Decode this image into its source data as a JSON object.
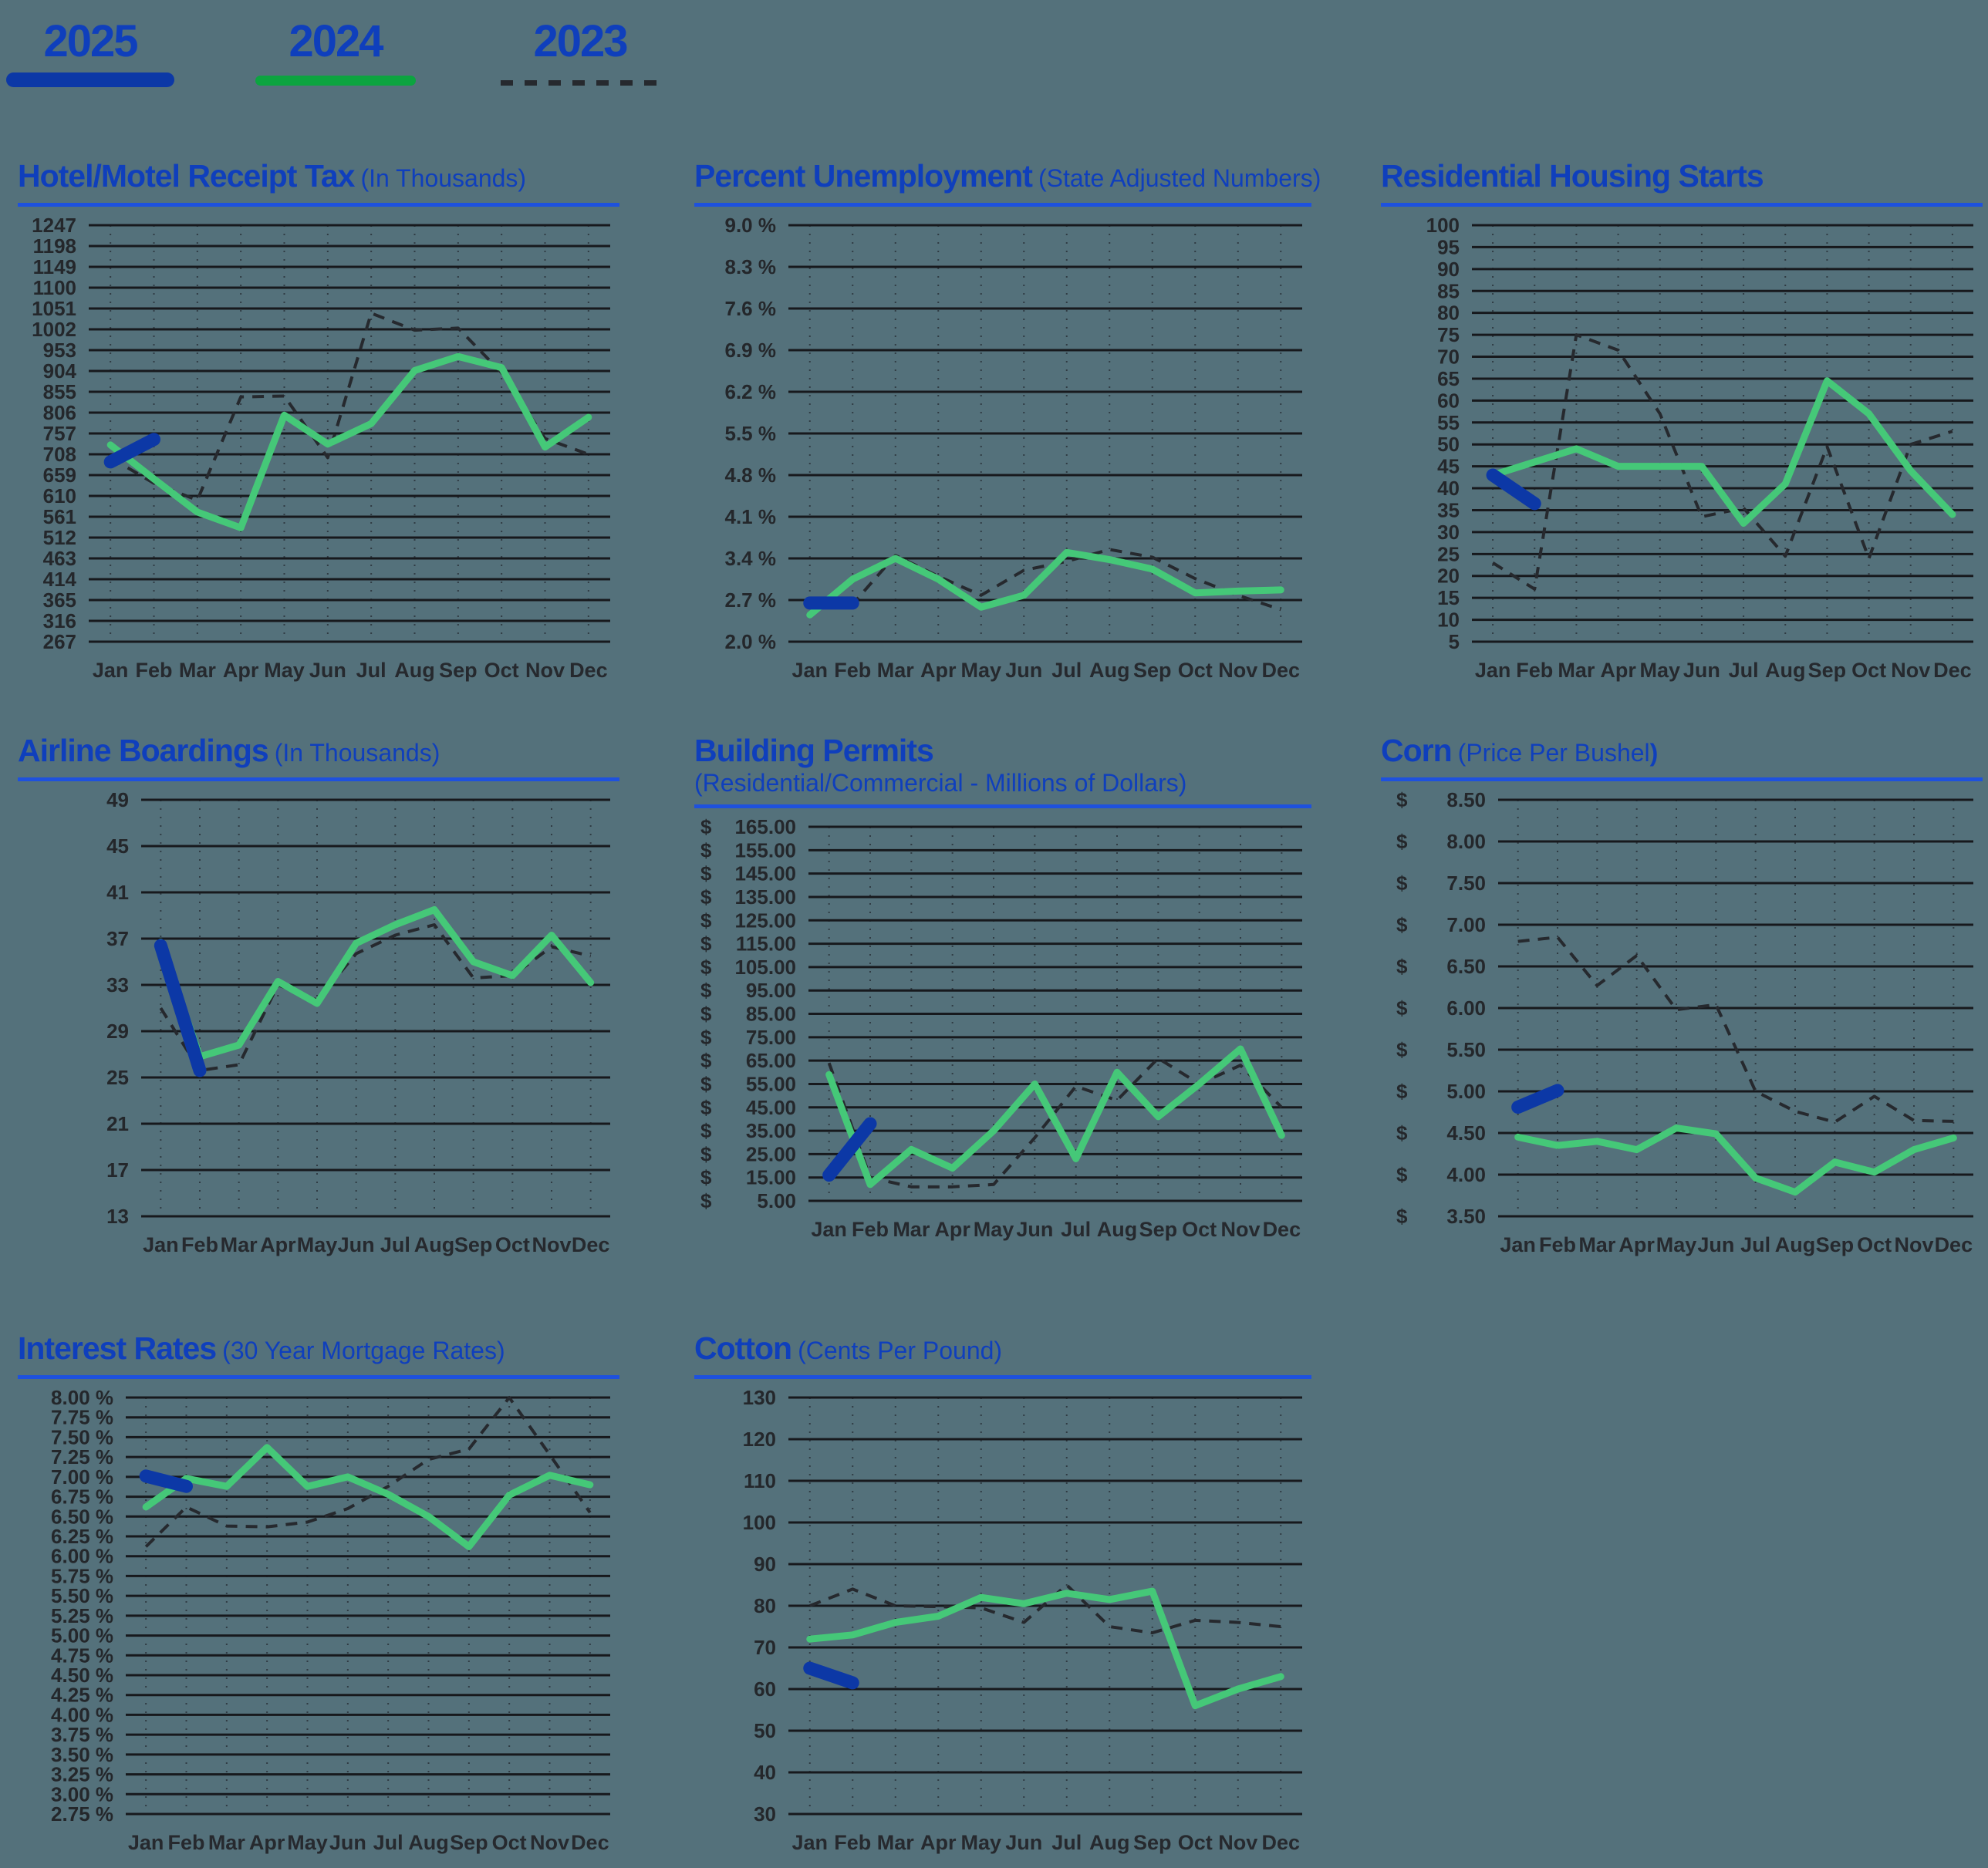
{
  "page": {
    "background": "#54717B"
  },
  "colors": {
    "background": "#54717B",
    "title": "#0F3FBC",
    "rule": "#1E51DE",
    "series_2025": "#0C38A6",
    "series_2024": "#45C878",
    "series_2023": "#26292E",
    "legend_2024_swatch": "#0CA440",
    "grid": "#17191D",
    "tick_dots": "#303C44",
    "label": "#24272B"
  },
  "legend": {
    "items": [
      {
        "label": "2025",
        "line_style": "solid-thick",
        "color": "#0C38A6"
      },
      {
        "label": "2024",
        "line_style": "solid",
        "color": "#0CA440"
      },
      {
        "label": "2023",
        "line_style": "dashed",
        "color": "#26292E"
      }
    ]
  },
  "chart_data": [
    {
      "type": "line",
      "id": "hotel-motel-receipt-tax",
      "title": "Hotel/Motel Receipt Tax",
      "subtitle": "(In Thousands)",
      "subtitle_bold_suffix": "",
      "ylim": [
        267,
        1247
      ],
      "ytick_step": 49,
      "ylabel_format": "int",
      "grid": "horizontal-solid, vertical-dotted",
      "legend_position": "top-of-page",
      "categories": [
        "Jan",
        "Feb",
        "Mar",
        "Apr",
        "May",
        "Jun",
        "Jul",
        "Aug",
        "Sep",
        "Oct",
        "Nov",
        "Dec"
      ],
      "series": [
        {
          "name": "2025",
          "values": [
            690,
            743
          ]
        },
        {
          "name": "2024",
          "values": [
            730,
            650,
            572,
            535,
            800,
            732,
            780,
            905,
            938,
            912,
            725,
            795
          ]
        },
        {
          "name": "2023",
          "values": [
            700,
            640,
            600,
            843,
            845,
            700,
            1040,
            1000,
            1005,
            900,
            745,
            708
          ]
        }
      ]
    },
    {
      "type": "line",
      "id": "percent-unemployment",
      "title": "Percent Unemployment",
      "subtitle": "(State Adjusted Numbers)",
      "subtitle_bold_suffix": "",
      "ylim": [
        2.0,
        9.0
      ],
      "ytick_step": 0.7,
      "ylabel_format": "pct1",
      "grid": "horizontal-solid, vertical-dotted",
      "legend_position": "top-of-page",
      "categories": [
        "Jan",
        "Feb",
        "Mar",
        "Apr",
        "May",
        "Jun",
        "Jul",
        "Aug",
        "Sep",
        "Oct",
        "Nov",
        "Dec"
      ],
      "series": [
        {
          "name": "2025",
          "values": [
            2.65,
            2.65
          ]
        },
        {
          "name": "2024",
          "values": [
            2.45,
            3.05,
            3.4,
            3.05,
            2.58,
            2.78,
            3.5,
            3.38,
            3.22,
            2.82,
            2.85,
            2.87
          ]
        },
        {
          "name": "2023",
          "values": [
            2.65,
            2.63,
            3.45,
            3.1,
            2.78,
            3.2,
            3.35,
            3.55,
            3.42,
            3.06,
            2.78,
            2.54
          ]
        }
      ]
    },
    {
      "type": "line",
      "id": "residential-housing-starts",
      "title": "Residential Housing Starts",
      "subtitle": "",
      "subtitle_bold_suffix": "",
      "ylim": [
        5,
        100
      ],
      "ytick_step": 5,
      "ylabel_format": "int",
      "grid": "horizontal-solid, vertical-dotted",
      "legend_position": "top-of-page",
      "categories": [
        "Jan",
        "Feb",
        "Mar",
        "Apr",
        "May",
        "Jun",
        "Jul",
        "Aug",
        "Sep",
        "Oct",
        "Nov",
        "Dec"
      ],
      "series": [
        {
          "name": "2025",
          "values": [
            43,
            36.5
          ]
        },
        {
          "name": "2024",
          "values": [
            43,
            46,
            49,
            45,
            45,
            45,
            32,
            41,
            64.5,
            57,
            44,
            34
          ]
        },
        {
          "name": "2023",
          "values": [
            23,
            17,
            75,
            71.5,
            57,
            33.5,
            35.5,
            24.5,
            49.5,
            24,
            50,
            53
          ]
        }
      ]
    },
    {
      "type": "line",
      "id": "airline-boardings",
      "title": "Airline Boardings",
      "subtitle": "(In Thousands)",
      "subtitle_bold_suffix": "",
      "ylim": [
        13,
        49
      ],
      "ytick_step": 4,
      "ylabel_format": "int",
      "grid": "horizontal-solid, vertical-dotted",
      "legend_position": "top-of-page",
      "categories": [
        "Jan",
        "Feb",
        "Mar",
        "Apr",
        "May",
        "Jun",
        "Jul",
        "Aug",
        "Sep",
        "Oct",
        "Nov",
        "Dec"
      ],
      "series": [
        {
          "name": "2025",
          "values": [
            36.4,
            25.6
          ]
        },
        {
          "name": "2024",
          "values": [
            36.7,
            26.8,
            27.8,
            33.3,
            31.4,
            36.6,
            38.2,
            39.5,
            35.0,
            33.8,
            37.3,
            33.2
          ]
        },
        {
          "name": "2023",
          "values": [
            31.0,
            25.6,
            26.1,
            33.0,
            31.7,
            35.7,
            37.3,
            38.2,
            33.6,
            33.8,
            36.3,
            35.5
          ]
        }
      ]
    },
    {
      "type": "line",
      "id": "building-permits",
      "title": "Building Permits",
      "subtitle": "(Residential/Commercial - Millions of Dollars)",
      "subtitle_bold_suffix": "",
      "ylim": [
        5,
        165
      ],
      "ytick_step": 10,
      "ylabel_format": "usd2",
      "grid": "horizontal-solid, vertical-dotted",
      "legend_position": "top-of-page",
      "categories": [
        "Jan",
        "Feb",
        "Mar",
        "Apr",
        "May",
        "Jun",
        "Jul",
        "Aug",
        "Sep",
        "Oct",
        "Nov",
        "Dec"
      ],
      "series": [
        {
          "name": "2025",
          "values": [
            16,
            38
          ]
        },
        {
          "name": "2024",
          "values": [
            59,
            12,
            27,
            19,
            35,
            55,
            23,
            60,
            41,
            55,
            70,
            33
          ]
        },
        {
          "name": "2023",
          "values": [
            64,
            15,
            11,
            11,
            12,
            32,
            54,
            48,
            66,
            55,
            63,
            45
          ]
        }
      ]
    },
    {
      "type": "line",
      "id": "corn-price-per-bushel",
      "title": "Corn",
      "subtitle": "(Price Per Bushel",
      "subtitle_bold_suffix": ")",
      "ylim": [
        3.5,
        8.5
      ],
      "ytick_step": 0.5,
      "ylabel_format": "usd2",
      "grid": "horizontal-solid, vertical-dotted",
      "legend_position": "top-of-page",
      "categories": [
        "Jan",
        "Feb",
        "Mar",
        "Apr",
        "May",
        "Jun",
        "Jul",
        "Aug",
        "Sep",
        "Oct",
        "Nov",
        "Dec"
      ],
      "series": [
        {
          "name": "2025",
          "values": [
            4.81,
            5.01
          ]
        },
        {
          "name": "2024",
          "values": [
            4.45,
            4.35,
            4.4,
            4.3,
            4.56,
            4.49,
            3.96,
            3.79,
            4.15,
            4.03,
            4.3,
            4.44
          ]
        },
        {
          "name": "2023",
          "values": [
            6.8,
            6.85,
            6.27,
            6.63,
            5.98,
            6.04,
            5.0,
            4.76,
            4.63,
            4.94,
            4.65,
            4.64
          ]
        }
      ]
    },
    {
      "type": "line",
      "id": "interest-rates",
      "title": "Interest Rates",
      "subtitle": "(30 Year Mortgage Rates)",
      "subtitle_bold_suffix": "",
      "ylim": [
        2.75,
        8.0
      ],
      "ytick_step": 0.25,
      "ylabel_format": "pct2",
      "grid": "horizontal-solid, vertical-dotted",
      "legend_position": "top-of-page",
      "categories": [
        "Jan",
        "Feb",
        "Mar",
        "Apr",
        "May",
        "Jun",
        "Jul",
        "Aug",
        "Sep",
        "Oct",
        "Nov",
        "Dec"
      ],
      "series": [
        {
          "name": "2025",
          "values": [
            7.01,
            6.88
          ]
        },
        {
          "name": "2024",
          "values": [
            6.62,
            6.98,
            6.88,
            7.37,
            6.88,
            7.0,
            6.78,
            6.5,
            6.12,
            6.77,
            7.02,
            6.9
          ]
        },
        {
          "name": "2023",
          "values": [
            6.12,
            6.62,
            6.38,
            6.37,
            6.43,
            6.6,
            6.88,
            7.22,
            7.35,
            8.0,
            7.28,
            6.55
          ]
        }
      ]
    },
    {
      "type": "line",
      "id": "cotton-cents-per-pound",
      "title": "Cotton",
      "subtitle": "(Cents Per Pound)",
      "subtitle_bold_suffix": "",
      "ylim": [
        30,
        130
      ],
      "ytick_step": 10,
      "ylabel_format": "int",
      "grid": "horizontal-solid, vertical-dotted",
      "legend_position": "top-of-page",
      "categories": [
        "Jan",
        "Feb",
        "Mar",
        "Apr",
        "May",
        "Jun",
        "Jul",
        "Aug",
        "Sep",
        "Oct",
        "Nov",
        "Dec"
      ],
      "series": [
        {
          "name": "2025",
          "values": [
            65,
            61.5
          ]
        },
        {
          "name": "2024",
          "values": [
            72,
            73,
            76,
            77.5,
            82,
            80.5,
            83,
            81.5,
            83.5,
            56,
            60,
            63
          ]
        },
        {
          "name": "2023",
          "values": [
            80,
            84,
            80,
            79.8,
            79.5,
            76,
            85,
            75,
            73.5,
            76.5,
            76,
            75
          ]
        }
      ]
    }
  ]
}
